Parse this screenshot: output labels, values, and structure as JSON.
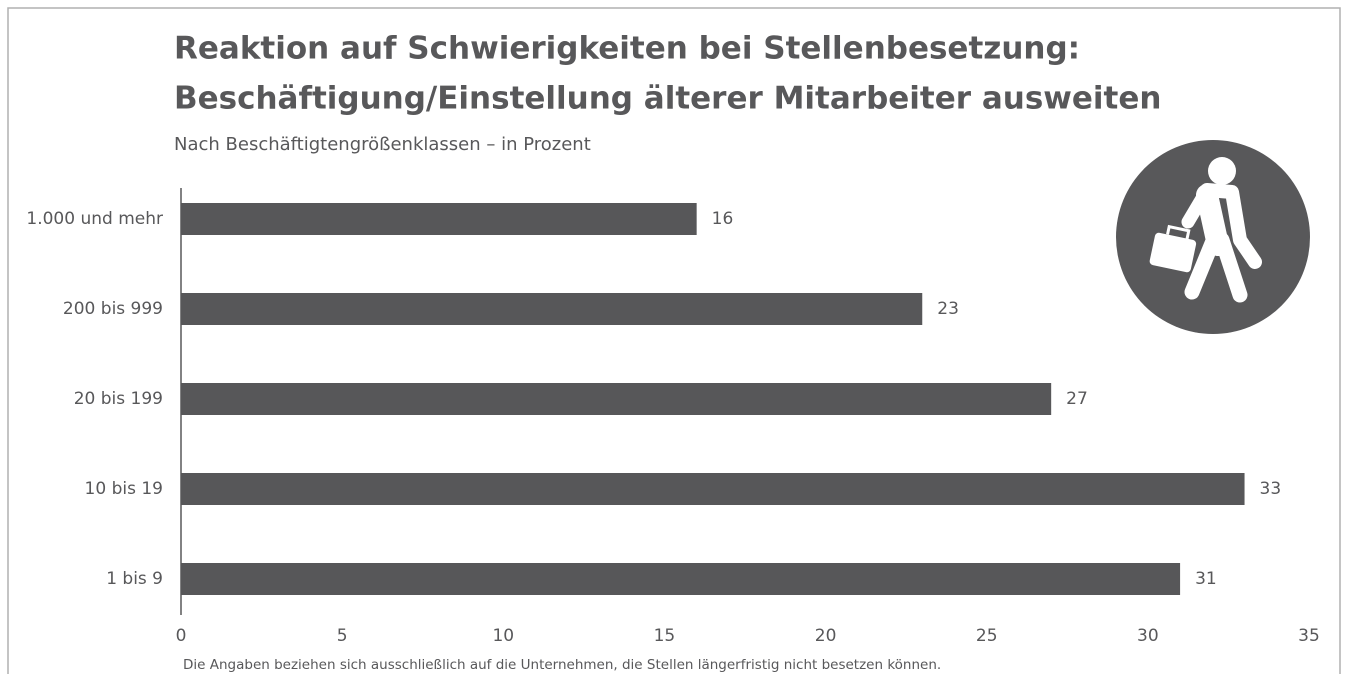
{
  "chart_data": {
    "type": "bar",
    "orientation": "horizontal",
    "title": [
      "Reaktion auf Schwierigkeiten bei Stellenbesetzung:",
      "Beschäftigung/Einstellung älterer Mitarbeiter ausweiten"
    ],
    "subtitle": "Nach Beschäftigtengrößenklassen – in Prozent",
    "categories": [
      "1.000 und mehr",
      "200 bis 999",
      "20 bis 199",
      "10 bis 19",
      "1 bis 9"
    ],
    "values": [
      16,
      23,
      27,
      33,
      31
    ],
    "color": "#575759",
    "xlim": [
      0,
      35
    ],
    "xticks": [
      0,
      5,
      10,
      15,
      20,
      25,
      30,
      35
    ],
    "grid": false,
    "footnote": "Die Angaben beziehen sich ausschließlich auf die Unternehmen, die Stellen längerfristig nicht besetzen können."
  }
}
